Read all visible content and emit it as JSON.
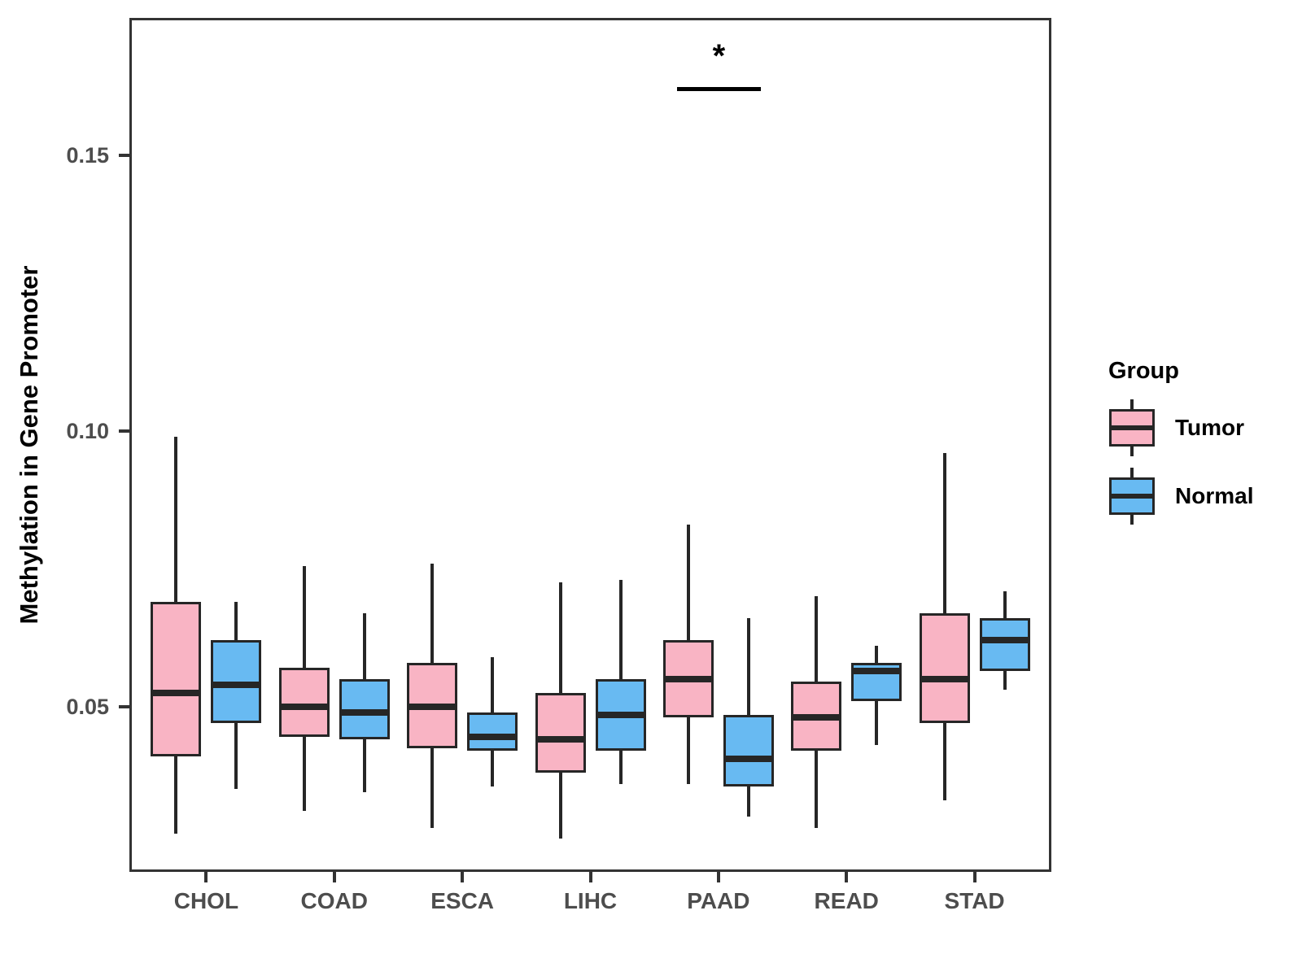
{
  "figure": {
    "y_axis_title": "Methylation in Gene Promoter"
  },
  "legend": {
    "title": "Group",
    "entries": [
      {
        "label": "Tumor",
        "color": "#F9B4C4"
      },
      {
        "label": "Normal",
        "color": "#68BAF2"
      }
    ]
  },
  "colors": {
    "box_stroke": "#262626",
    "panel_border": "#333333",
    "axis_text": "#4d4d4d",
    "tumor_fill": "#F9B4C4",
    "normal_fill": "#68BAF2"
  },
  "chart_data": {
    "type": "grouped_boxplot",
    "title": "",
    "xlabel": "",
    "ylabel": "Methylation in Gene Promoter",
    "categories": [
      "CHOL",
      "COAD",
      "ESCA",
      "LIHC",
      "PAAD",
      "READ",
      "STAD"
    ],
    "ylim": [
      0.02,
      0.175
    ],
    "yticks": [
      {
        "value": 0.05,
        "label": "0.05"
      },
      {
        "value": 0.1,
        "label": "0.10"
      },
      {
        "value": 0.15,
        "label": "0.15"
      }
    ],
    "grid": "off",
    "legend_position": "right",
    "series": [
      {
        "name": "Tumor",
        "fill": "#F9B4C4",
        "stats": [
          {
            "category": "CHOL",
            "whisker_low": 0.027,
            "q1": 0.041,
            "median": 0.0525,
            "q3": 0.069,
            "whisker_high": 0.099
          },
          {
            "category": "COAD",
            "whisker_low": 0.031,
            "q1": 0.0445,
            "median": 0.05,
            "q3": 0.057,
            "whisker_high": 0.0755
          },
          {
            "category": "ESCA",
            "whisker_low": 0.028,
            "q1": 0.0425,
            "median": 0.05,
            "q3": 0.058,
            "whisker_high": 0.076
          },
          {
            "category": "LIHC",
            "whisker_low": 0.026,
            "q1": 0.038,
            "median": 0.044,
            "q3": 0.0525,
            "whisker_high": 0.0725
          },
          {
            "category": "PAAD",
            "whisker_low": 0.036,
            "q1": 0.048,
            "median": 0.055,
            "q3": 0.062,
            "whisker_high": 0.083
          },
          {
            "category": "READ",
            "whisker_low": 0.028,
            "q1": 0.042,
            "median": 0.048,
            "q3": 0.0545,
            "whisker_high": 0.07
          },
          {
            "category": "STAD",
            "whisker_low": 0.033,
            "q1": 0.047,
            "median": 0.055,
            "q3": 0.067,
            "whisker_high": 0.096
          }
        ]
      },
      {
        "name": "Normal",
        "fill": "#68BAF2",
        "stats": [
          {
            "category": "CHOL",
            "whisker_low": 0.035,
            "q1": 0.047,
            "median": 0.054,
            "q3": 0.062,
            "whisker_high": 0.069
          },
          {
            "category": "COAD",
            "whisker_low": 0.0345,
            "q1": 0.044,
            "median": 0.049,
            "q3": 0.055,
            "whisker_high": 0.067
          },
          {
            "category": "ESCA",
            "whisker_low": 0.0355,
            "q1": 0.042,
            "median": 0.0445,
            "q3": 0.049,
            "whisker_high": 0.059
          },
          {
            "category": "LIHC",
            "whisker_low": 0.036,
            "q1": 0.042,
            "median": 0.0485,
            "q3": 0.055,
            "whisker_high": 0.073
          },
          {
            "category": "PAAD",
            "whisker_low": 0.03,
            "q1": 0.0355,
            "median": 0.0405,
            "q3": 0.0485,
            "whisker_high": 0.066
          },
          {
            "category": "READ",
            "whisker_low": 0.043,
            "q1": 0.051,
            "median": 0.0565,
            "q3": 0.058,
            "whisker_high": 0.061
          },
          {
            "category": "STAD",
            "whisker_low": 0.053,
            "q1": 0.0565,
            "median": 0.062,
            "q3": 0.066,
            "whisker_high": 0.071
          }
        ]
      }
    ],
    "annotations": [
      {
        "type": "significance_bar",
        "category": "PAAD",
        "label": "*",
        "bar_value": 0.1625,
        "label_value": 0.169
      }
    ]
  }
}
